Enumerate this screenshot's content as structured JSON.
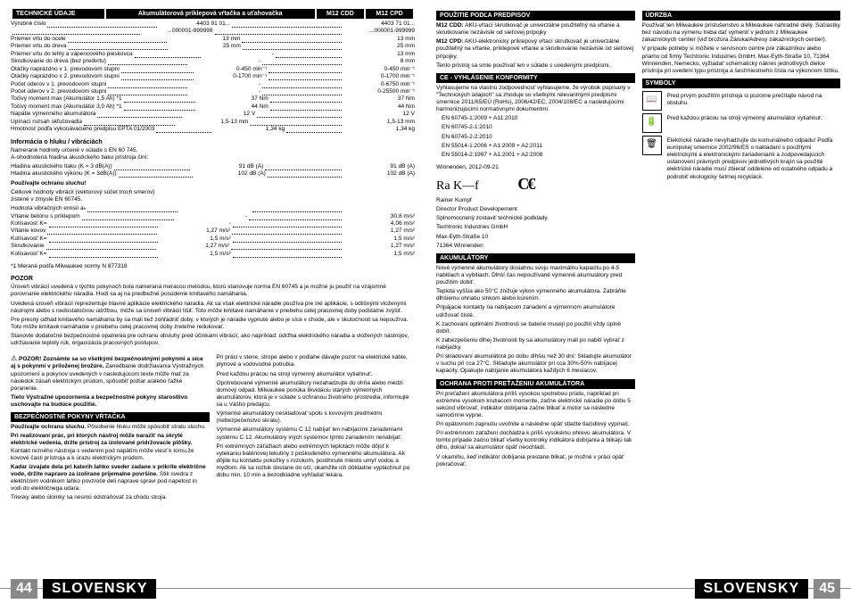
{
  "header": {
    "c1": "TECHNICKÉ ÚDAJE",
    "c2": "Akumulátorová príklepová vŕtačka a uťahovačka",
    "c3": "M12 CDD",
    "c4": "M12 CPD"
  },
  "specs": [
    {
      "l": "Výrobné číslo",
      "v1": "4403 91 01...",
      "v2": "4403 71 01..."
    },
    {
      "l": "",
      "v1": "...000001-999999",
      "v2": "...000001-999999"
    },
    {
      "l": "Priemer vrtu do ocele",
      "v1": "13 mm",
      "v2": "13 mm"
    },
    {
      "l": "Priemer vrtu do dreva",
      "v1": "25 mm",
      "v2": "25 mm"
    },
    {
      "l": "Priemer vrtu do tehly a vápencového pieskovca",
      "v1": "-",
      "v2": "13 mm"
    },
    {
      "l": "Skrutkovanie do dreva (bez predvrtu)",
      "v1": "-",
      "v2": "8 mm"
    },
    {
      "l": "Otáčky naprázdno v 1. prevodovom stupni",
      "v1": "0-450 min⁻¹",
      "v2": "0-450 min⁻¹"
    },
    {
      "l": "Otáčky naprázdno v 2. prevodovom stupni",
      "v1": "0-1700 min⁻¹",
      "v2": "0-1700 min⁻¹"
    },
    {
      "l": "Počet úderov v 1. prevodovom stupni",
      "v1": "-",
      "v2": "0-6750 min⁻¹"
    },
    {
      "l": "Počet úderov v 2. prevodovom stupni",
      "v1": "-",
      "v2": "0-25500 min⁻¹"
    },
    {
      "l": "Točivý moment max (Akumulátor 1,5 Ah) *1",
      "v1": "37 Nm",
      "v2": "37 Nm"
    },
    {
      "l": "Točivý moment max (Akumulátor 3,0 Ah) *1",
      "v1": "44 Nm",
      "v2": "44 Nm"
    },
    {
      "l": "Napätie výmenného akumulátora",
      "v1": "12 V",
      "v2": "12 V"
    },
    {
      "l": "Upínací rozsah skľučovadla",
      "v1": "1,5-13 mm",
      "v2": "1,5-13 mm"
    },
    {
      "l": "Hmotnosť podľa vykonávacieho predpisu EPTA 01/2003",
      "v1": "1,34 kg",
      "v2": "1,34 kg"
    }
  ],
  "noise_title": "Informácia o hluku / vibráciách",
  "noise_intro": "Namerané hodnoty určené v súlade s EN 60 745.\nA-ohodnotená hladina akustického tlaku prístroja činí:",
  "noise": [
    {
      "l": "Hladina akustického tlaku (K = 3 dB(A))",
      "v1": "91 dB (A)",
      "v2": "91 dB (A)"
    },
    {
      "l": "Hladina akustického výkonu (K = 3dB(A))",
      "v1": "102 dB (A)",
      "v2": "102 dB (A)"
    }
  ],
  "noise_warn": "Používajte ochranu sluchu!",
  "vib_intro": "Celkové hodnoty vibrácií (vektorový súčet troch smerov)\nzistené v zmysle EN 60745.",
  "vib": [
    {
      "l": "Hodnota vibračných emisií aₕ",
      "v1": "",
      "v2": ""
    },
    {
      "l": "Vŕtanie betónu s príklepom",
      "v1": "-",
      "v2": "30,8 m/s²"
    },
    {
      "l": "Kolísavosť K=",
      "v1": "-",
      "v2": "4,06 m/s²"
    },
    {
      "l": "Vŕtanie kovov",
      "v1": "1,27 m/s²",
      "v2": "1,27 m/s²"
    },
    {
      "l": "Kolísavosť K=",
      "v1": "1,5 m/s²",
      "v2": "1,5 m/s²"
    },
    {
      "l": "Skrutkovanie",
      "v1": "1,27 m/s²",
      "v2": "1,27 m/s²"
    },
    {
      "l": "Kolísavosť K=",
      "v1": "1,5 m/s²",
      "v2": "1,5 m/s²"
    }
  ],
  "footnote": "*1 Merané podľa Milwaukee normy N 877318",
  "pozor_h": "POZOR",
  "pozor": [
    "Úroveň vibrácií uvedená v týchto pokynoch bola nameraná meracou metódou, ktorú stanovuje norma EN 60745 a je možné ju použiť na vzájomné porovnanie elektrického náradia. Hodí sa aj na predbežné posúdenie kmitavého namáhania.",
    "Uvedená úroveň vibrácií reprezentuje hlavné aplikácie elektrického náradia. Ak sa však elektrické náradie používa pre iné aplikácie, s odlišnými vloženými nástrojmi alebo s nedostatočnou údržbou, môže sa úroveň vibrácií líšiť. Toto môže kmitavé namáhanie v priebehu celej pracovnej doby podstatne zvýšiť.",
    "Pre presný odhad kmitavého namáhania by sa mali tiež zohľadniť doby, v ktorých je náradie vypnuté alebo je síce v chode, ale v skutočnosti sa nepoužíva. Toto môže kmitavé namáhanie v priebehu celej pracovnej doby zreteľne redukovať.",
    "Stanovte dodatočné bezpečnostné opatrenia pre ochranu obsluhy pred účinkami vibrácií, ako napríklad: údržba elektrického náradia a vložených nástrojov, udržiavanie teploty rúk, organizácia pracovných postupov."
  ],
  "safety_h": "POZOR! Zoznámte sa so všetkými bezpečnostnými pokynmi a síce aj s pokynmi v priloženej brožúre.",
  "safety1": "Zanedbanie dodržiavania Výstražných upozornení a pokynov uvedených v nasledujúcom texte môže mať za následok zásah elektrickým prúdom, spôsobiť požiar a/alebo ťažké poranenie.",
  "safety2": "Tieto Výstražné upozornenia a bezpečnostné pokyny starostlivo uschovajte na budúce použitie.",
  "bezp_h": "BEZPEČNOSTNÉ POKYNY VŔTAČKA",
  "bezp": [
    "<b>Používajte ochranu sluchu.</b> Pôsobenie hluku môže spôsobiť stratu sluchu.",
    "<b>Pri realizovaní prác, pri ktorých nástroj môže naraziť na skryté elektrické vedenia, držte prístroj za izolované pridržovacie plôšky.</b> Kontakt rezného nástroja s vedením pod napätím môže viesť k tomu,že kovové časti prístroja a k úrazu elektrickým prúdom.",
    "<b>Kadar izvajate dela pri katerih lahko sveder zadane v prikrite električne vode, držite napravo za izolirane prijemalne površine.</b> Stik svedra z električnim vodnikom lahko povzroče deli naprave spravi pod napetost in vodi do električnega udara.",
    "Triesky alebo úlomky sa nesmú odstraňovať za chodu stroja."
  ],
  "right_col": [
    "Pri práci v stene, strope alebo v podlahe dávajte pozor na elektrické káble, plynové a vodovodné potrubia.",
    "Pred každou prácou na stroji výmenný akumulátor vytiahnuť.",
    "Opotrebované výmenné akumulátory nezahadzujte do ohňa alebo medzi domový odpad. Milwaukee ponúka likvidáciu starých výmenných akumulátorov, ktorá je v súlade s ochranou životného prostredia; informujte sa u Vášho predajcu.",
    "Výmenné akumulátory neskladovať spolu s kovovými predmetmi (nebezpečenstvo skratu).",
    "Výmenné akumulátory systému C 12 nabíjať len nabíjacími zariadeniami systému C 12. Akumulátory iných systémov týmto zariadením nenabíjať.",
    "Pri extrémnych záťažiach alebo extrémnych teplotách môže dôjsť k vytekaniu batériovej tekutiny z poškodeného výmenného akumulátora. Ak dôjde ku kontaktu pokožky s rozokom, postihnuté miesto umyť vodou a mydlom. Ak sa roztok dostane do očí, okamžite ich dôkladne vypláchnuť po dobu min. 10 min a bezodkladne vyhľadať lekára."
  ],
  "pouzitie_h": "POUŽITIE PODĽA PREDPISOV",
  "pouzitie": [
    "<b>M12 CDD:</b> AKU-vŕtací skrutkovač je univerzálne použiteľný na vŕtanie a skrutkovanie nezávisle od sieťovej prípojky",
    "<b>M12 CPD:</b> AKU-elektronický príklepový vŕtací skrutkovač je univerzálne použiteľný na vŕtanie, príklepové vŕtanie a skrutkovanie nezávisle od sieťovej prípojky.",
    "Tento prístroj sa smie používať len v súlade s uvedenými predpismi."
  ],
  "ce_h": "CE - VYHLÁSENIE KONFORMITY",
  "ce_txt": "Vyhlasujeme na vlastnú zodpovednosť vyhlasujeme, že výrobok popísaný v \"Technických údajoch\" sa zhoduje so všetkými relevantnými predpismi smernice 2011/65/EÚ (RoHs), 2006/42/EC, 2004/108/EC a nasledujúcimi harmonizujúcimi normatívnymi dokumentmi:",
  "ce_norms": [
    "EN 60745-1:2009 + A11:2010",
    "EN 60745-2-1:2010",
    "EN 60745-2-2:2010",
    "EN 55014-1:2006 + A1:2009 + A2:2011",
    "EN 55014-2:1997 + A1:2001 + A2:2008"
  ],
  "ce_date": "Winnenden, 2012-09-21",
  "ce_name": "Rainer Kumpf",
  "ce_role": "Director Product Developement",
  "ce_addr": [
    "Splnomocnený zostaviť technické podklady.",
    "Techtronic Industries GmbH",
    "Max-Eyth-Straße 10",
    "71364 Winnenden"
  ],
  "aku_h": "AKUMULÁTORY",
  "aku": [
    "Nové výmenné akumulátory dosiahnu svoju maximálnu kapacitu po 4-5 nabitiach a vybitiach. Dlhší čas nepoužívané výmenné akumulátory pred použitím dobiť.",
    "Teplota vyššia ako 50°C znižuje výkon výmenného akumulátora. Zabráňte dlhšiemu ohriatiu slnkom alebo kúrením.",
    "Pripájacie kontakty na nabíjacom zariadení a výmennom akumulátore udržovať čisté.",
    "K zachovaní optimální životnosti se baterie musejí po použití vždy úplně dobít.",
    "K zabezpečeniu dlhej životnosti by sa akumulátory mali po nabití vybrať z nabíjačky.",
    "Pri skladovaní akumulátora po dobu dlhšiu než 30 dní: Skladujte akumulátor v suchu pri cca 27°C. Skladujte akumulátor pri cca 30%-50% nabíjacej kapacity. Opakujte nabíjanie akumulátora každých 6 mesiacov."
  ],
  "ochrana_h": "OCHRANA PROTI PREŤAŽENIU AKUMULÁTORA",
  "ochrana": [
    "Pri preťažení akumulátora príliš vysokou spotrebou prúdu, napríklad pri extrémne vysokom krutiacom momente, začne elektrické náradie po dobu 5 sekúnd vibrovať, indikátor dobíjania začne blikať a motor sa následne samočinne vypne.",
    "Pri opätovnom zapnutiu uvoľnite a následne opäť stlačte tlačidlový vypínač.",
    "Pri extrémnom zaťažení dochádza k príliš vysokému ohrevu akumulátora. V tomto prípade začnú blikať všetky kontrolky indikátora dobíjania a blikajú tak dlho, dokiaľ sa akumulátor opäť neochladí.",
    "V okamihu, keď indikátor dobíjania prestane blikať, je možné v práci opäť pokračovať."
  ],
  "udrzba_h": "ÚDRZBA",
  "udrzba": [
    "Používať len Milwaukee príslušenstvo a Milwaukee náhradné diely. Súčiastky bez návodu na výmenu treba dať vymeniť v jednom z Milwaukee zákazníckych centier (viď brožúra Záruka/Adresy zákazníckych centier).",
    "V prípade potreby si môžete v servisnom centre pre zákazníkov alebo priamo od firmy Techtronic Industries GmbH, Max-Eyth-Straße 10, 71364 Winnenden, Nemecko, vyžiadať schematický nákres jednotlivých dielov prístroja pri uvedení typu prístroja a šesťmiestneho čísla na výkonnom štítku."
  ],
  "symboly_h": "SYMBOLY",
  "sym": [
    "Pred prvým použitím prístroja si pozorne prečítajte návod na obsluhu.",
    "Pred každou prácou na stroji výmenný akumulátor vytiahnuť.",
    "Elektrické náradie nevyhadzujte do komunálneho odpadu! Podľa európskej smernice 2002/96/ES o nakladaní s použitými elektrickými a elektronickými zariadeniami a zodpovedajúcich ustanovení právnych predpisov jednotlivých krajín sa použité elektrické náradie musí zbierať oddelene od ostatného odpadu a podrobiť ekologicky šetrnej recyklácii."
  ],
  "lang": "SLOVENSKY",
  "p44": "44",
  "p45": "45"
}
